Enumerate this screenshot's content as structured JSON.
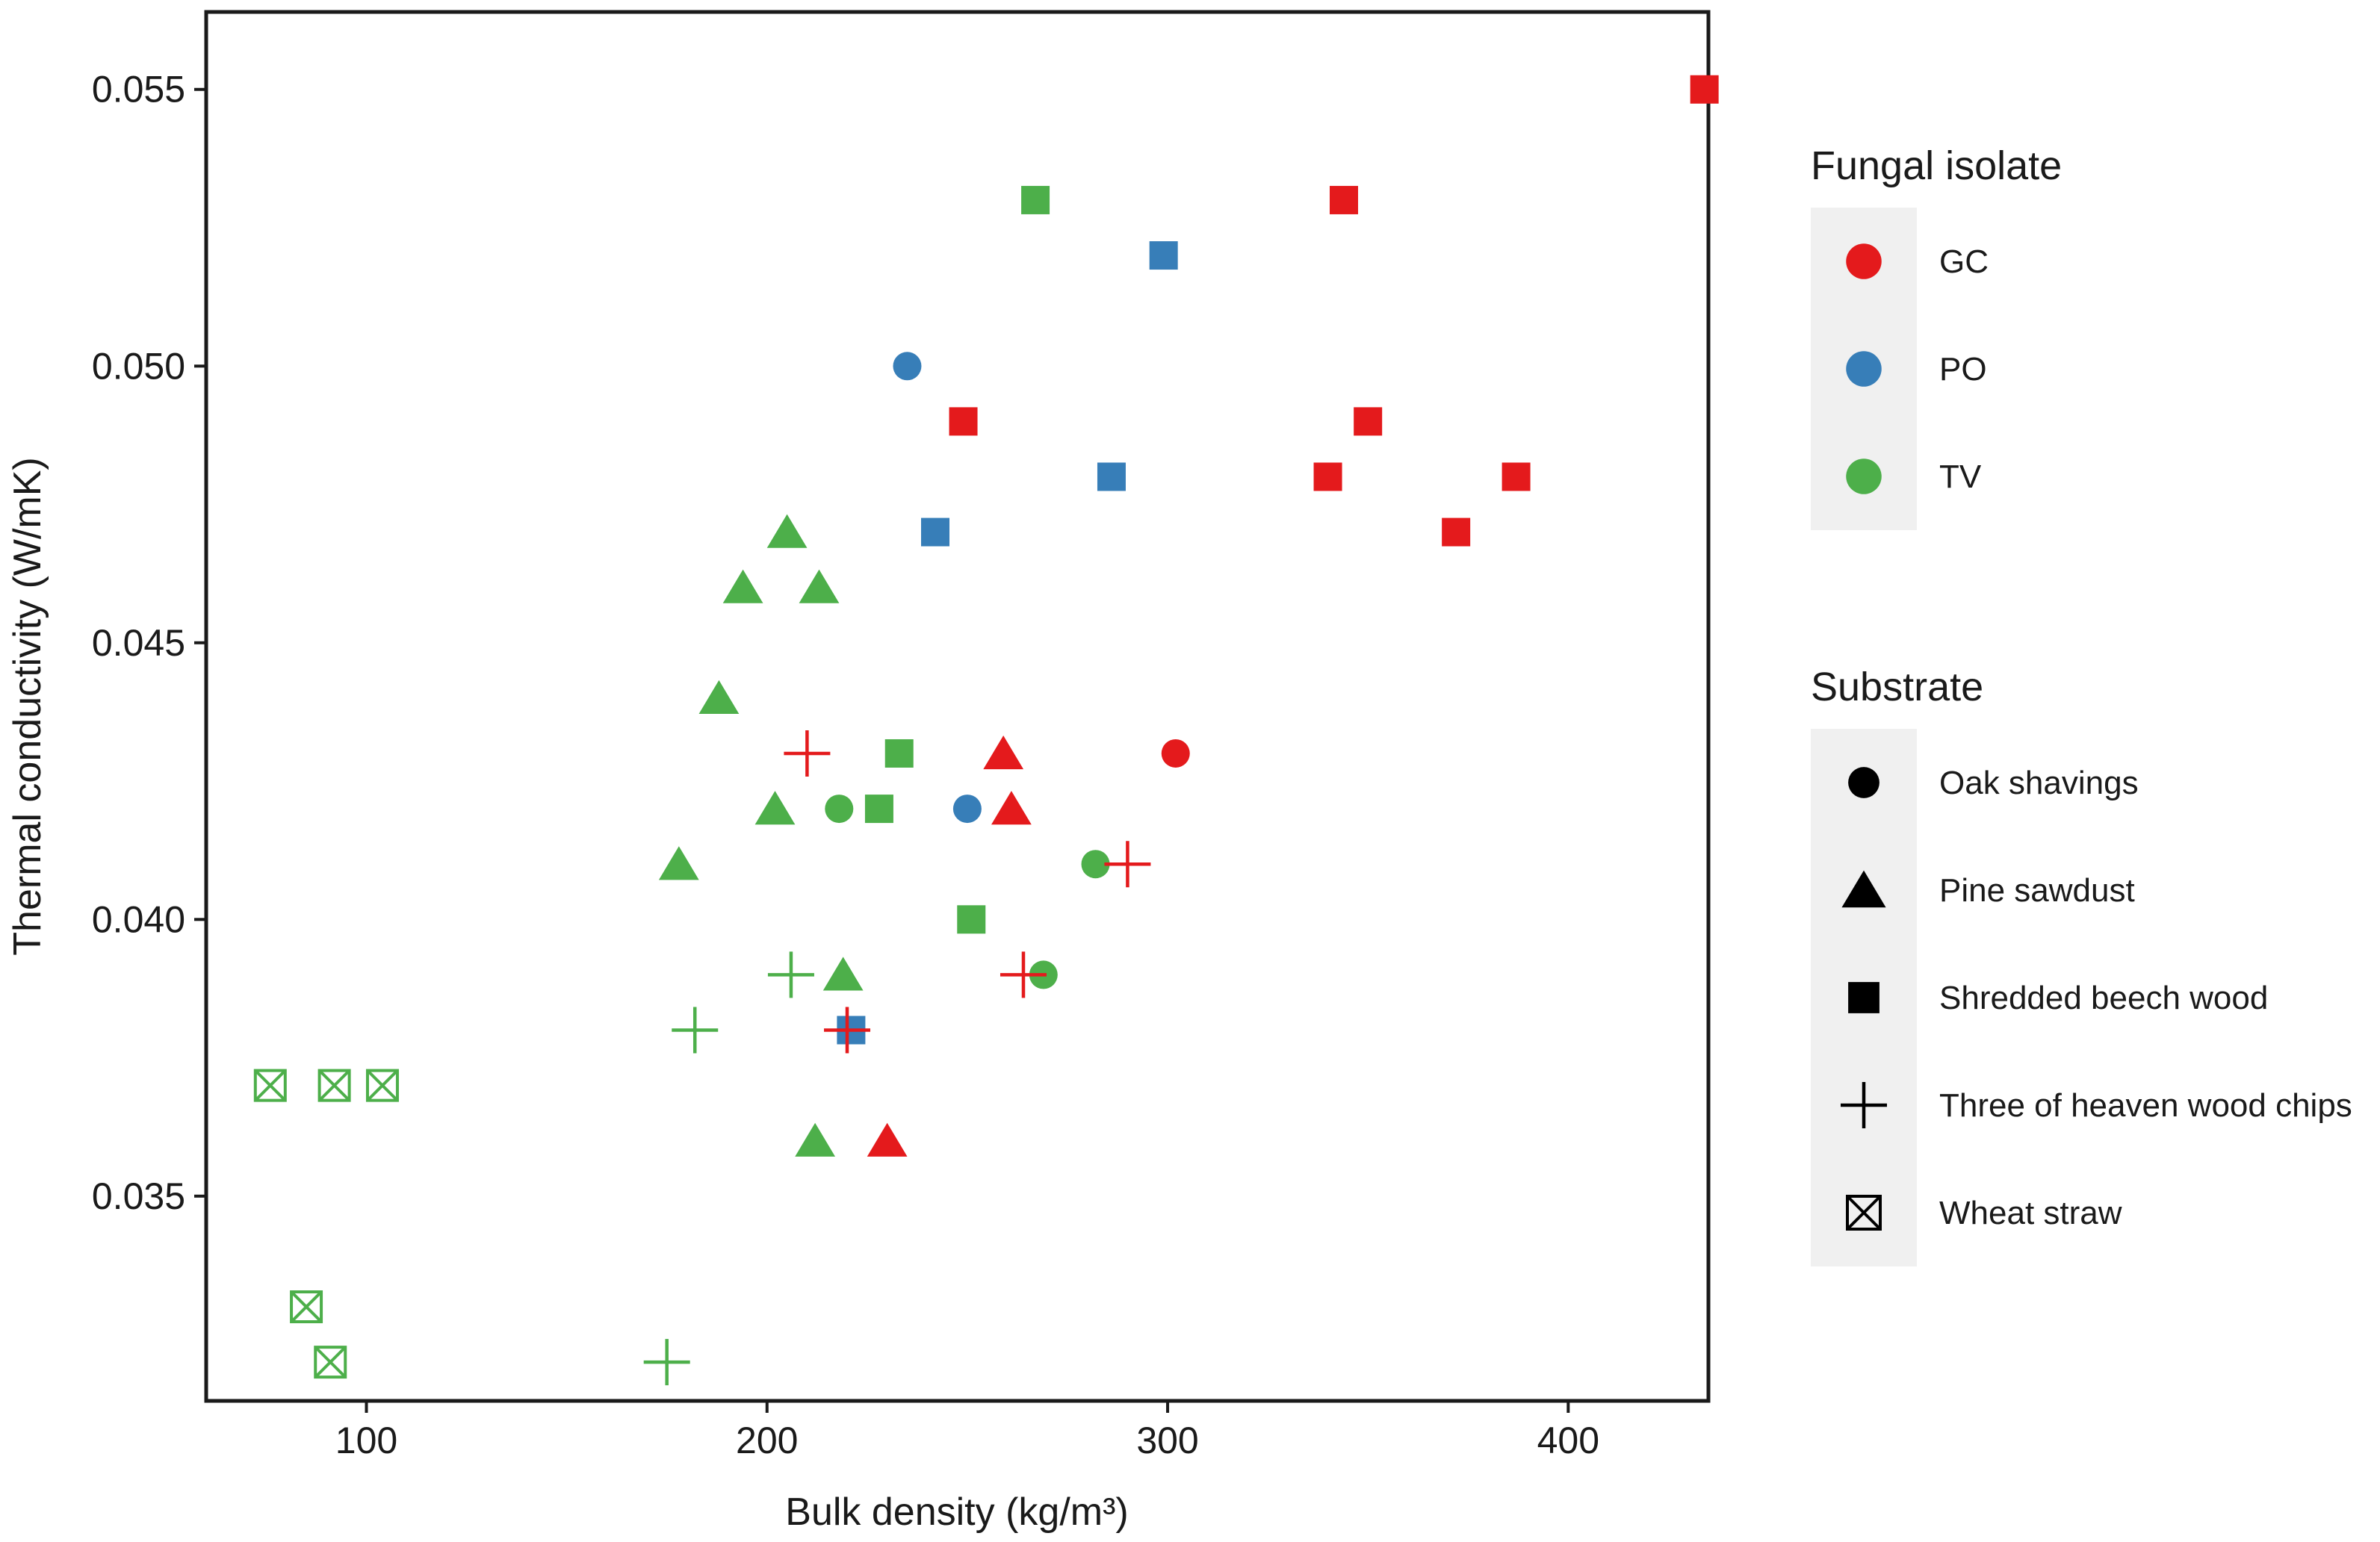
{
  "chart_data": {
    "type": "scatter",
    "title": "",
    "xlabel": "Bulk density (kg/m³)",
    "ylabel": "Thermal conductivity (W/mK)",
    "xlim": [
      60,
      435
    ],
    "ylim": [
      0.0313,
      0.0564
    ],
    "x_ticks": [
      100,
      200,
      300,
      400
    ],
    "x_tick_labels": [
      "100",
      "200",
      "300",
      "400"
    ],
    "y_ticks": [
      0.035,
      0.04,
      0.045,
      0.05,
      0.055
    ],
    "y_tick_labels": [
      "0.035",
      "0.040",
      "0.045",
      "0.050",
      "0.055"
    ],
    "grid": false,
    "legend_position": "right",
    "colors": {
      "GC": "#e41a1c",
      "PO": "#377eb8",
      "TV": "#4daf4a"
    },
    "legend": {
      "color_title": "Fungal isolate",
      "color_entries": [
        {
          "key": "GC",
          "label": "GC"
        },
        {
          "key": "PO",
          "label": "PO"
        },
        {
          "key": "TV",
          "label": "TV"
        }
      ],
      "shape_title": "Substrate",
      "shape_entries": [
        {
          "shape": "circle",
          "label": "Oak shavings"
        },
        {
          "shape": "triangle",
          "label": "Pine sawdust"
        },
        {
          "shape": "square",
          "label": "Shredded beech wood"
        },
        {
          "shape": "plus",
          "label": "Three of heaven wood chips"
        },
        {
          "shape": "boxx",
          "label": "Wheat straw"
        }
      ]
    },
    "series": [
      {
        "name": "GC",
        "shape": "square",
        "x": [
          434,
          344,
          350,
          249,
          340,
          387,
          372
        ],
        "y": [
          0.055,
          0.053,
          0.049,
          0.049,
          0.048,
          0.048,
          0.047
        ]
      },
      {
        "name": "PO",
        "shape": "square",
        "x": [
          299,
          286,
          242,
          221
        ],
        "y": [
          0.052,
          0.048,
          0.047,
          0.038
        ]
      },
      {
        "name": "TV",
        "shape": "square",
        "x": [
          267,
          233,
          228,
          251
        ],
        "y": [
          0.053,
          0.043,
          0.042,
          0.04
        ]
      },
      {
        "name": "GC",
        "shape": "circle",
        "x": [
          302
        ],
        "y": [
          0.043
        ]
      },
      {
        "name": "PO",
        "shape": "circle",
        "x": [
          235,
          250
        ],
        "y": [
          0.05,
          0.042
        ]
      },
      {
        "name": "TV",
        "shape": "circle",
        "x": [
          218,
          282,
          269
        ],
        "y": [
          0.042,
          0.041,
          0.039
        ]
      },
      {
        "name": "GC",
        "shape": "triangle",
        "x": [
          259,
          261,
          230
        ],
        "y": [
          0.043,
          0.042,
          0.036
        ]
      },
      {
        "name": "TV",
        "shape": "triangle",
        "x": [
          205,
          194,
          213,
          188,
          202,
          178,
          219,
          212
        ],
        "y": [
          0.047,
          0.046,
          0.046,
          0.044,
          0.042,
          0.041,
          0.039,
          0.036
        ]
      },
      {
        "name": "GC",
        "shape": "plus",
        "x": [
          210,
          290,
          264,
          220
        ],
        "y": [
          0.043,
          0.041,
          0.039,
          0.038
        ]
      },
      {
        "name": "TV",
        "shape": "plus",
        "x": [
          206,
          182,
          175
        ],
        "y": [
          0.039,
          0.038,
          0.032
        ]
      },
      {
        "name": "TV",
        "shape": "boxx",
        "x": [
          76,
          92,
          104,
          85,
          91
        ],
        "y": [
          0.037,
          0.037,
          0.037,
          0.033,
          0.032
        ]
      }
    ]
  }
}
